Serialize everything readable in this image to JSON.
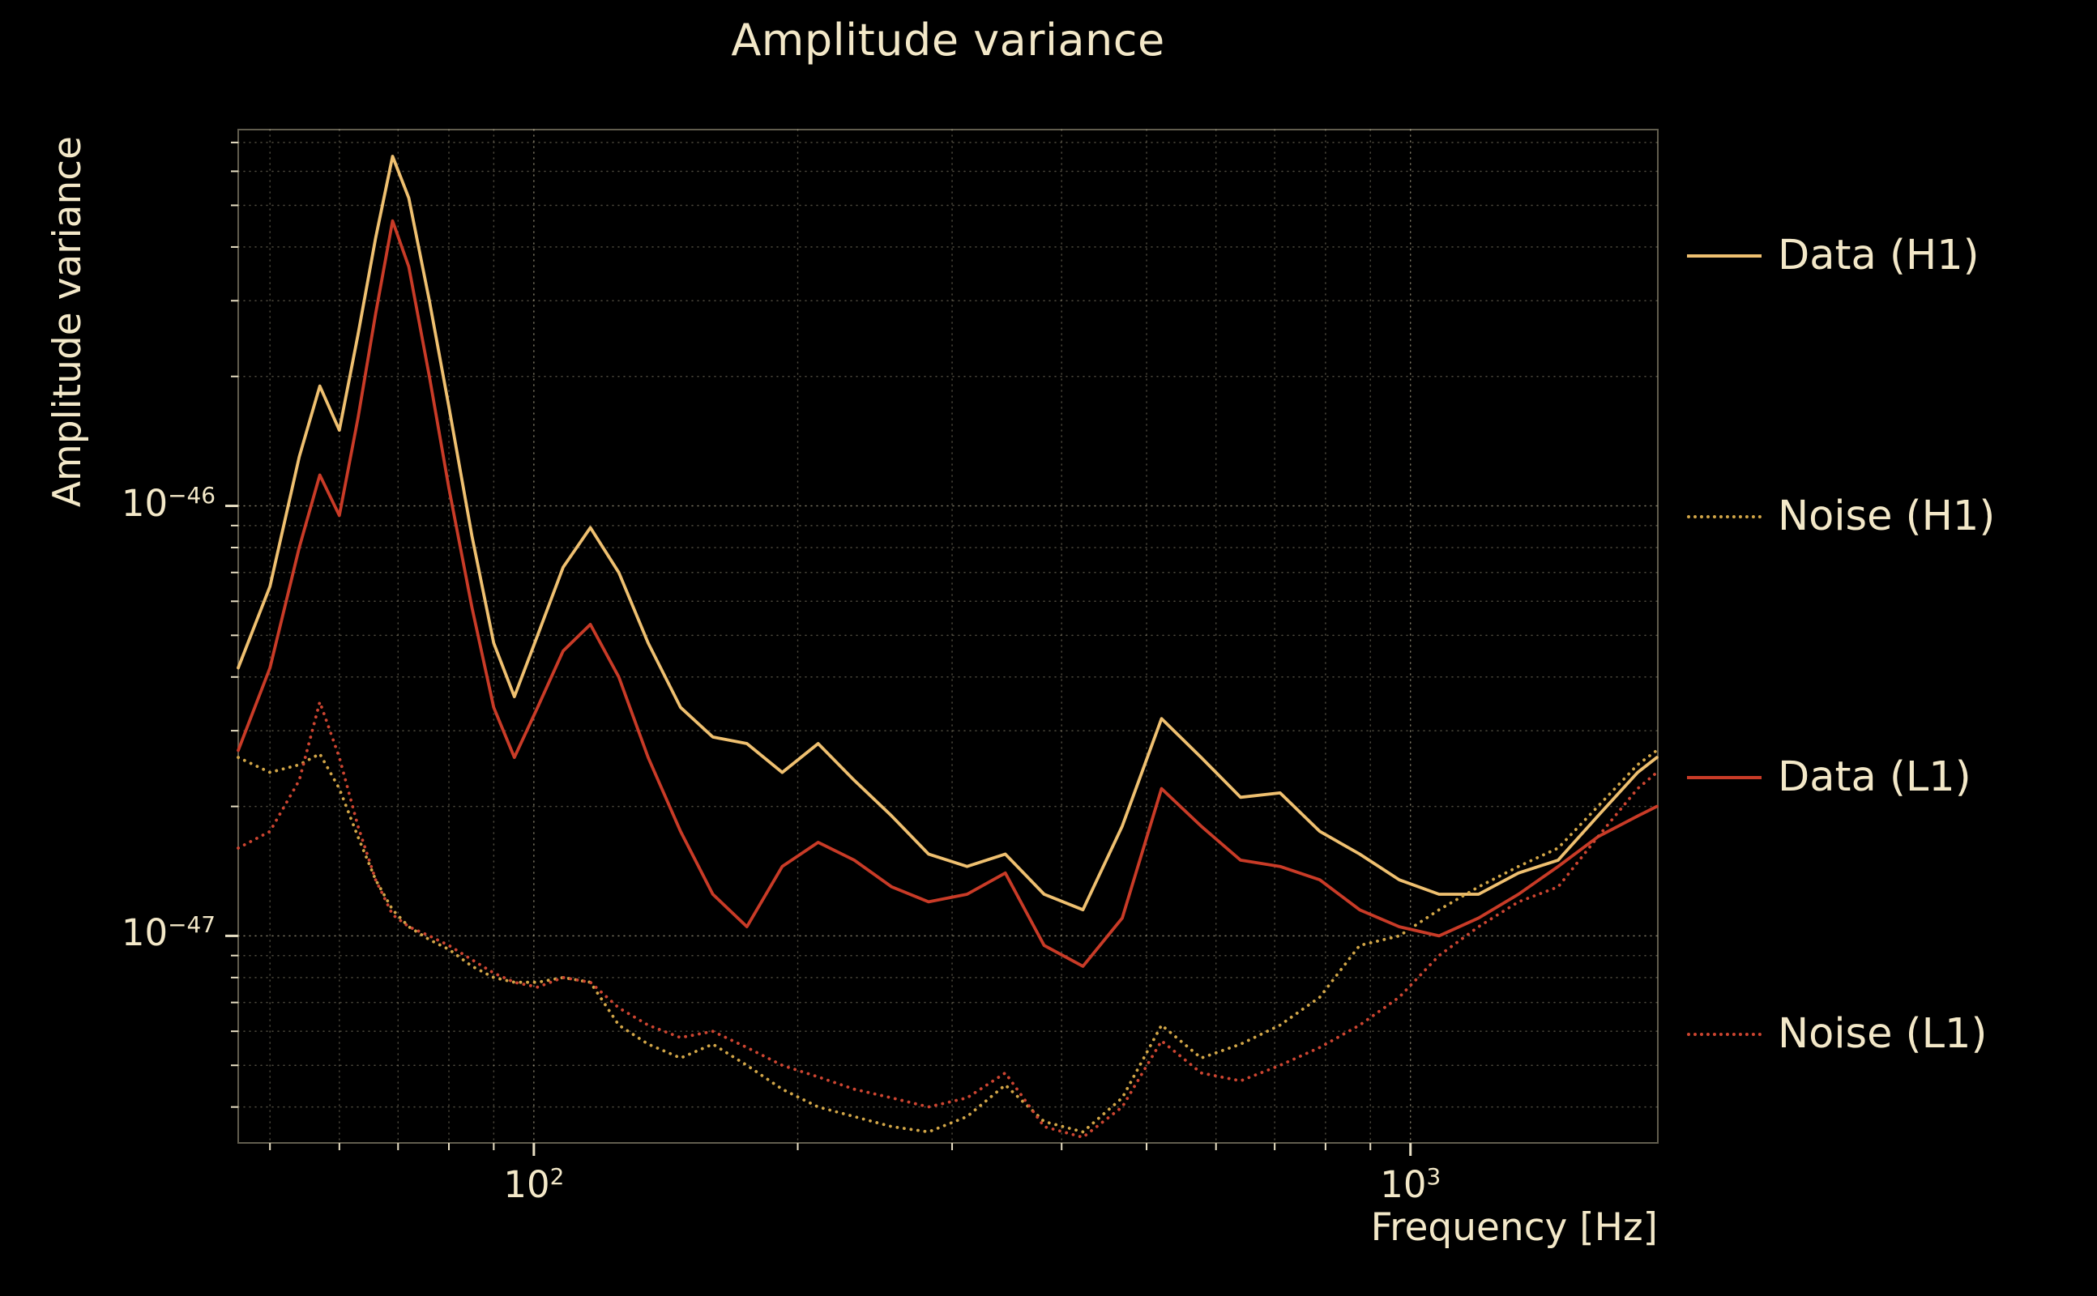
{
  "figure": {
    "colors": {
      "background": "#000000",
      "text": "#f3e8c8",
      "grid": "#cfc5a5",
      "tick": "#e8dfc4",
      "frame": "#d8cfae"
    }
  },
  "chart_data": {
    "type": "line",
    "title": "Amplitude variance",
    "xlabel": "Frequency [Hz]",
    "ylabel": "Amplitude variance",
    "x_scale": "log",
    "y_scale": "log",
    "xlim": [
      46,
      1915
    ],
    "ylim": [
      3.3e-48,
      7.5e-46
    ],
    "grid": true,
    "legend_position": "right-outside",
    "x_tick_labels": [
      {
        "base": "10",
        "exp": "2",
        "value": 100
      },
      {
        "base": "10",
        "exp": "3",
        "value": 1000
      }
    ],
    "y_tick_labels": [
      {
        "base": "10",
        "exp": "−46",
        "value": 1e-46
      },
      {
        "base": "10",
        "exp": "−47",
        "value": 1e-47
      }
    ],
    "frequencies_hz": [
      46,
      50,
      54,
      57,
      60,
      63,
      66,
      69,
      72,
      76,
      80,
      85,
      90,
      95,
      101,
      108,
      116,
      125,
      135,
      147,
      160,
      175,
      192,
      211,
      232,
      256,
      282,
      312,
      345,
      382,
      423,
      469,
      520,
      577,
      640,
      710,
      788,
      875,
      971,
      1078,
      1196,
      1328,
      1474,
      1636,
      1816,
      1910
    ],
    "series": [
      {
        "id": "data-h1",
        "name": "Data (H1)",
        "color": "#efc070",
        "line_style": "solid",
        "values": [
          4.2e-47,
          6.5e-47,
          1.3e-46,
          1.9e-46,
          1.5e-46,
          2.5e-46,
          4.2e-46,
          6.5e-46,
          5.2e-46,
          3e-46,
          1.7e-46,
          8.5e-47,
          4.8e-47,
          3.6e-47,
          5e-47,
          7.2e-47,
          8.9e-47,
          7e-47,
          4.8e-47,
          3.4e-47,
          2.9e-47,
          2.8e-47,
          2.4e-47,
          2.8e-47,
          2.3e-47,
          1.9e-47,
          1.55e-47,
          1.45e-47,
          1.55e-47,
          1.25e-47,
          1.15e-47,
          1.8e-47,
          3.2e-47,
          2.6e-47,
          2.1e-47,
          2.15e-47,
          1.75e-47,
          1.55e-47,
          1.35e-47,
          1.25e-47,
          1.25e-47,
          1.4e-47,
          1.5e-47,
          1.9e-47,
          2.4e-47,
          2.6e-47
        ]
      },
      {
        "id": "noise-h1",
        "name": "Noise (H1)",
        "color": "#d2a648",
        "line_style": "dotted",
        "values": [
          2.6e-47,
          2.4e-47,
          2.5e-47,
          2.65e-47,
          2.2e-47,
          1.7e-47,
          1.35e-47,
          1.15e-47,
          1.05e-47,
          9.8e-48,
          9.3e-48,
          8.5e-48,
          8e-48,
          7.8e-48,
          7.8e-48,
          8e-48,
          7.8e-48,
          6.2e-48,
          5.6e-48,
          5.2e-48,
          5.6e-48,
          5e-48,
          4.4e-48,
          4e-48,
          3.8e-48,
          3.6e-48,
          3.5e-48,
          3.8e-48,
          4.5e-48,
          3.7e-48,
          3.5e-48,
          4.2e-48,
          6.2e-48,
          5.2e-48,
          5.6e-48,
          6.2e-48,
          7.2e-48,
          9.5e-48,
          1e-47,
          1.15e-47,
          1.3e-47,
          1.45e-47,
          1.6e-47,
          2e-47,
          2.5e-47,
          2.7e-47
        ]
      },
      {
        "id": "data-l1",
        "name": "Data (L1)",
        "color": "#c93b27",
        "line_style": "solid",
        "values": [
          2.7e-47,
          4.2e-47,
          8e-47,
          1.18e-46,
          9.5e-47,
          1.6e-46,
          2.8e-46,
          4.6e-46,
          3.6e-46,
          2e-46,
          1.1e-46,
          5.8e-47,
          3.4e-47,
          2.6e-47,
          3.4e-47,
          4.6e-47,
          5.3e-47,
          4e-47,
          2.6e-47,
          1.75e-47,
          1.25e-47,
          1.05e-47,
          1.45e-47,
          1.65e-47,
          1.5e-47,
          1.3e-47,
          1.2e-47,
          1.25e-47,
          1.4e-47,
          9.5e-48,
          8.5e-48,
          1.1e-47,
          2.2e-47,
          1.8e-47,
          1.5e-47,
          1.45e-47,
          1.35e-47,
          1.15e-47,
          1.05e-47,
          1e-47,
          1.1e-47,
          1.25e-47,
          1.45e-47,
          1.7e-47,
          1.9e-47,
          2e-47
        ]
      },
      {
        "id": "noise-l1",
        "name": "Noise (L1)",
        "color": "#cd4531",
        "line_style": "dotted",
        "values": [
          1.6e-47,
          1.75e-47,
          2.3e-47,
          3.5e-47,
          2.6e-47,
          1.8e-47,
          1.35e-47,
          1.12e-47,
          1.05e-47,
          1e-47,
          9.5e-48,
          8.8e-48,
          8.2e-48,
          7.8e-48,
          7.6e-48,
          8e-48,
          7.8e-48,
          6.8e-48,
          6.2e-48,
          5.8e-48,
          6e-48,
          5.5e-48,
          5e-48,
          4.7e-48,
          4.4e-48,
          4.2e-48,
          4e-48,
          4.2e-48,
          4.8e-48,
          3.6e-48,
          3.4e-48,
          4e-48,
          5.7e-48,
          4.8e-48,
          4.6e-48,
          5e-48,
          5.5e-48,
          6.2e-48,
          7.2e-48,
          9e-48,
          1.05e-47,
          1.2e-47,
          1.3e-47,
          1.7e-47,
          2.2e-47,
          2.4e-47
        ]
      }
    ]
  },
  "legend": {
    "items": [
      {
        "label": "Data (H1)"
      },
      {
        "label": "Noise (H1)"
      },
      {
        "label": "Data (L1)"
      },
      {
        "label": "Noise (L1)"
      }
    ]
  }
}
